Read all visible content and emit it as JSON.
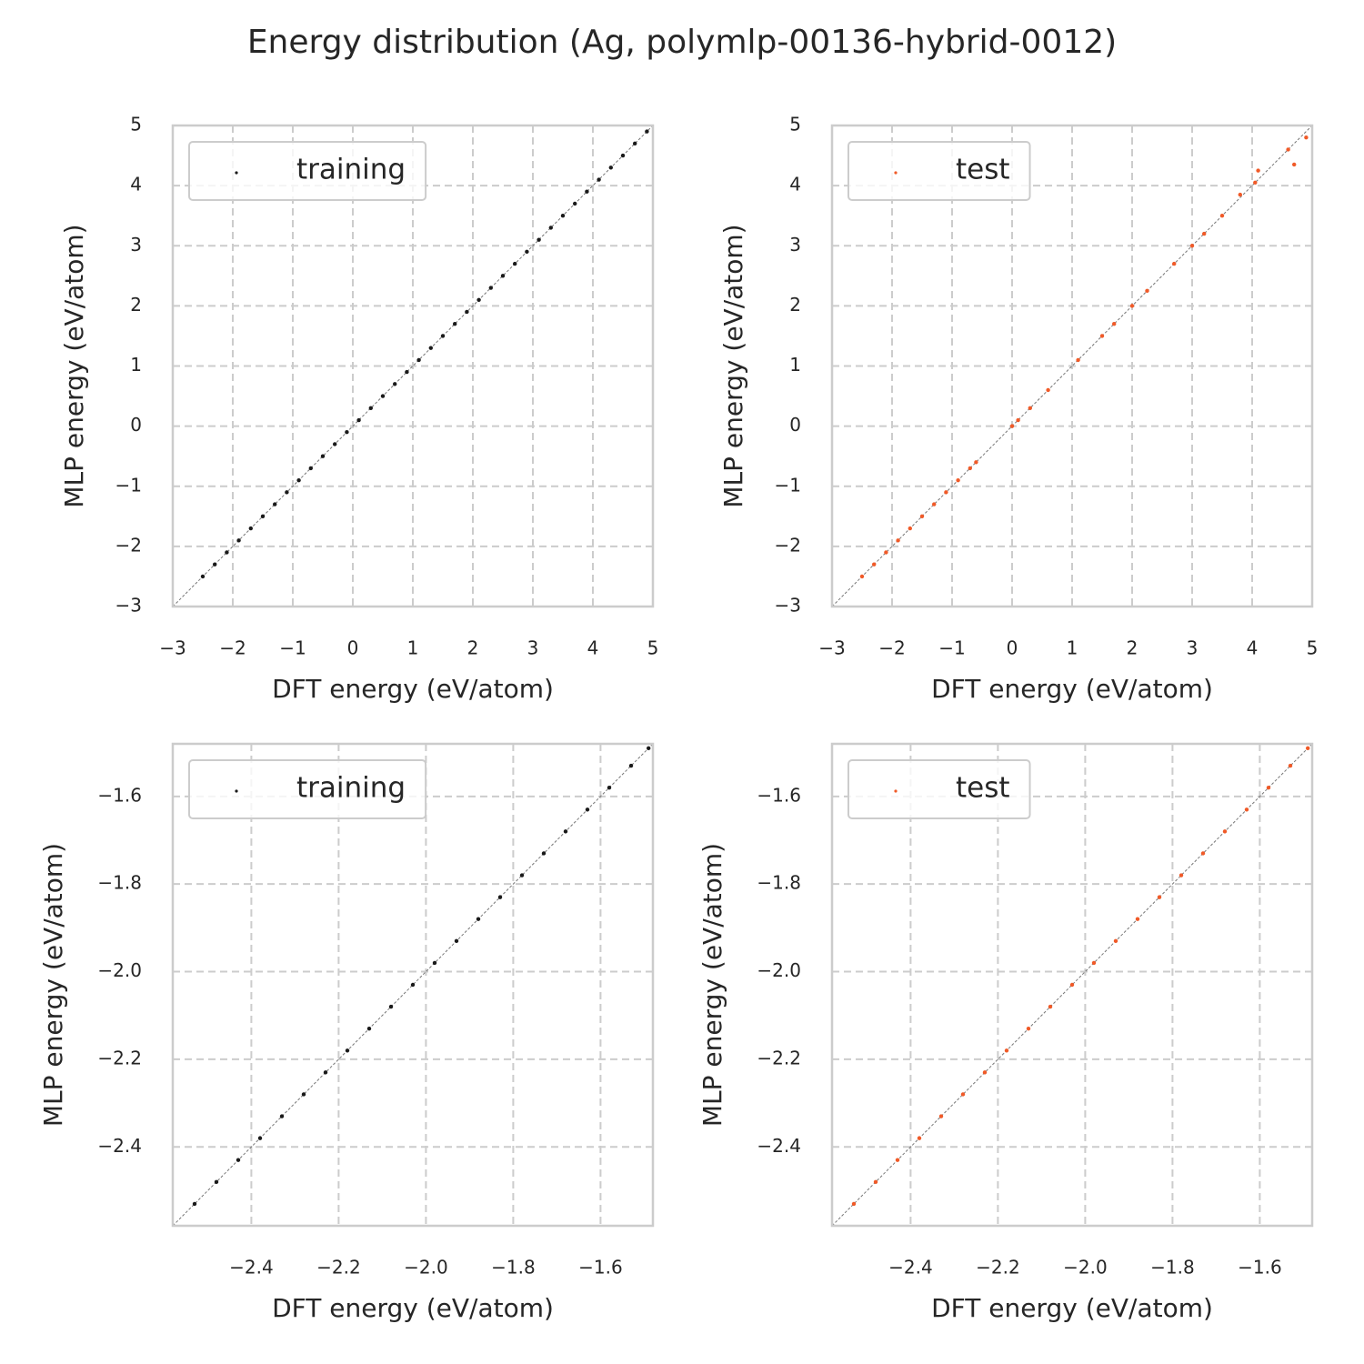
{
  "title": "Energy distribution (Ag, polymlp-00136-hybrid-0012)",
  "chart_data": [
    {
      "type": "scatter",
      "xlabel": "DFT energy (eV/atom)",
      "ylabel": "MLP energy (eV/atom)",
      "xlim": [
        -3,
        5
      ],
      "ylim": [
        -3,
        5
      ],
      "xticks": [
        {
          "value": -3,
          "label": "−3"
        },
        {
          "value": -2,
          "label": "−2"
        },
        {
          "value": -1,
          "label": "−1"
        },
        0,
        1,
        2,
        3,
        4,
        5
      ],
      "yticks": [
        {
          "value": -3,
          "label": "−3"
        },
        {
          "value": -2,
          "label": "−2"
        },
        {
          "value": -1,
          "label": "−1"
        },
        0,
        1,
        2,
        3,
        4,
        5
      ],
      "grid": true,
      "legend": "upper left",
      "series": [
        {
          "name": "training",
          "color": "#1a1a1a",
          "x": [
            -2.5,
            -2.3,
            -2.1,
            -1.9,
            -1.7,
            -1.5,
            -1.3,
            -1.1,
            -0.9,
            -0.7,
            -0.5,
            -0.3,
            -0.1,
            0.1,
            0.3,
            0.5,
            0.7,
            0.9,
            1.1,
            1.3,
            1.5,
            1.7,
            1.9,
            2.1,
            2.3,
            2.5,
            2.7,
            2.9,
            3.1,
            3.3,
            3.5,
            3.7,
            3.9,
            4.1,
            4.3,
            4.5,
            4.7,
            4.9
          ],
          "values": [
            -2.5,
            -2.3,
            -2.1,
            -1.9,
            -1.7,
            -1.5,
            -1.3,
            -1.1,
            -0.9,
            -0.7,
            -0.5,
            -0.3,
            -0.1,
            0.1,
            0.3,
            0.5,
            0.7,
            0.9,
            1.1,
            1.3,
            1.5,
            1.7,
            1.9,
            2.1,
            2.3,
            2.5,
            2.7,
            2.9,
            3.1,
            3.3,
            3.5,
            3.7,
            3.9,
            4.1,
            4.3,
            4.5,
            4.7,
            4.9
          ]
        }
      ]
    },
    {
      "type": "scatter",
      "xlabel": "DFT energy (eV/atom)",
      "ylabel": "MLP energy (eV/atom)",
      "xlim": [
        -3,
        5
      ],
      "ylim": [
        -3,
        5
      ],
      "xticks": [
        {
          "value": -3,
          "label": "−3"
        },
        {
          "value": -2,
          "label": "−2"
        },
        {
          "value": -1,
          "label": "−1"
        },
        0,
        1,
        2,
        3,
        4,
        5
      ],
      "yticks": [
        {
          "value": -3,
          "label": "−3"
        },
        {
          "value": -2,
          "label": "−2"
        },
        {
          "value": -1,
          "label": "−1"
        },
        0,
        1,
        2,
        3,
        4,
        5
      ],
      "grid": true,
      "legend": "upper left",
      "series": [
        {
          "name": "test",
          "color": "#f05a28",
          "x": [
            -2.5,
            -2.3,
            -2.1,
            -1.9,
            -1.7,
            -1.5,
            -1.3,
            -1.1,
            -0.9,
            -0.7,
            -0.6,
            0.0,
            0.1,
            0.3,
            0.6,
            1.1,
            1.5,
            1.7,
            2.0,
            2.25,
            2.7,
            3.0,
            3.2,
            3.5,
            3.8,
            4.05,
            4.1,
            4.6,
            4.7,
            4.9
          ],
          "values": [
            -2.5,
            -2.3,
            -2.1,
            -1.9,
            -1.7,
            -1.5,
            -1.3,
            -1.1,
            -0.9,
            -0.7,
            -0.6,
            0.0,
            0.1,
            0.3,
            0.6,
            1.1,
            1.5,
            1.7,
            2.0,
            2.25,
            2.7,
            3.0,
            3.2,
            3.5,
            3.85,
            4.05,
            4.25,
            4.6,
            4.35,
            4.8
          ]
        }
      ]
    },
    {
      "type": "scatter",
      "xlabel": "DFT energy (eV/atom)",
      "ylabel": "MLP energy (eV/atom)",
      "xlim": [
        -2.58,
        -1.48
      ],
      "ylim": [
        -2.58,
        -1.48
      ],
      "xticks": [
        {
          "value": -2.4,
          "label": "−2.4"
        },
        {
          "value": -2.2,
          "label": "−2.2"
        },
        {
          "value": -2.0,
          "label": "−2.0"
        },
        {
          "value": -1.8,
          "label": "−1.8"
        },
        {
          "value": -1.6,
          "label": "−1.6"
        }
      ],
      "yticks": [
        {
          "value": -2.4,
          "label": "−2.4"
        },
        {
          "value": -2.2,
          "label": "−2.2"
        },
        {
          "value": -2.0,
          "label": "−2.0"
        },
        {
          "value": -1.8,
          "label": "−1.8"
        },
        {
          "value": -1.6,
          "label": "−1.6"
        }
      ],
      "grid": true,
      "legend": "upper left",
      "series": [
        {
          "name": "training",
          "color": "#1a1a1a",
          "x": [
            -2.53,
            -2.48,
            -2.43,
            -2.38,
            -2.33,
            -2.28,
            -2.23,
            -2.18,
            -2.13,
            -2.08,
            -2.03,
            -1.98,
            -1.93,
            -1.88,
            -1.83,
            -1.78,
            -1.73,
            -1.68,
            -1.63,
            -1.58,
            -1.53,
            -1.49
          ],
          "values": [
            -2.53,
            -2.48,
            -2.43,
            -2.38,
            -2.33,
            -2.28,
            -2.23,
            -2.18,
            -2.13,
            -2.08,
            -2.03,
            -1.98,
            -1.93,
            -1.88,
            -1.83,
            -1.78,
            -1.73,
            -1.68,
            -1.63,
            -1.58,
            -1.53,
            -1.49
          ]
        }
      ]
    },
    {
      "type": "scatter",
      "xlabel": "DFT energy (eV/atom)",
      "ylabel": "MLP energy (eV/atom)",
      "xlim": [
        -2.58,
        -1.48
      ],
      "ylim": [
        -2.58,
        -1.48
      ],
      "xticks": [
        {
          "value": -2.4,
          "label": "−2.4"
        },
        {
          "value": -2.2,
          "label": "−2.2"
        },
        {
          "value": -2.0,
          "label": "−2.0"
        },
        {
          "value": -1.8,
          "label": "−1.8"
        },
        {
          "value": -1.6,
          "label": "−1.6"
        }
      ],
      "yticks": [
        {
          "value": -2.4,
          "label": "−2.4"
        },
        {
          "value": -2.2,
          "label": "−2.2"
        },
        {
          "value": -2.0,
          "label": "−2.0"
        },
        {
          "value": -1.8,
          "label": "−1.8"
        },
        {
          "value": -1.6,
          "label": "−1.6"
        }
      ],
      "grid": true,
      "legend": "upper left",
      "series": [
        {
          "name": "test",
          "color": "#f05a28",
          "x": [
            -2.53,
            -2.48,
            -2.43,
            -2.38,
            -2.33,
            -2.28,
            -2.23,
            -2.18,
            -2.13,
            -2.08,
            -2.03,
            -1.98,
            -1.93,
            -1.88,
            -1.83,
            -1.78,
            -1.73,
            -1.68,
            -1.63,
            -1.58,
            -1.53,
            -1.49
          ],
          "values": [
            -2.53,
            -2.48,
            -2.43,
            -2.38,
            -2.33,
            -2.28,
            -2.23,
            -2.18,
            -2.13,
            -2.08,
            -2.03,
            -1.98,
            -1.93,
            -1.88,
            -1.83,
            -1.78,
            -1.73,
            -1.68,
            -1.63,
            -1.58,
            -1.53,
            -1.49
          ]
        }
      ]
    }
  ]
}
